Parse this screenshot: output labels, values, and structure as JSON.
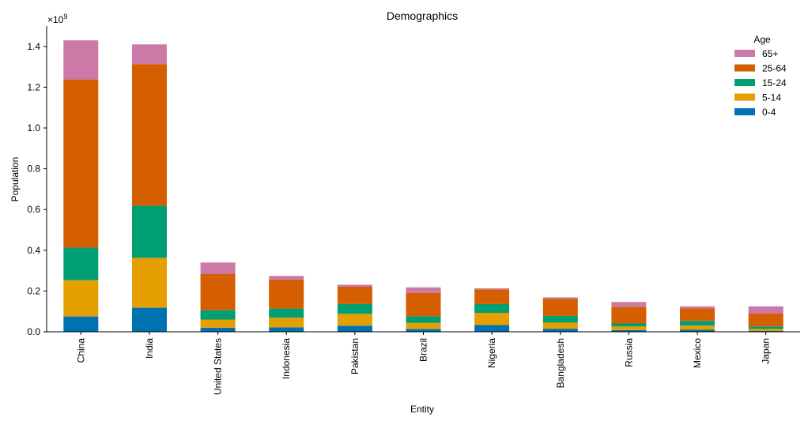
{
  "chart_data": {
    "type": "bar",
    "stacked": true,
    "title": "Demographics",
    "xlabel": "Entity",
    "ylabel": "Population",
    "y_multiplier": "×10",
    "y_multiplier_exp": "9",
    "ylim": [
      0,
      1.5
    ],
    "yticks": [
      0.0,
      0.2,
      0.4,
      0.6,
      0.8,
      1.0,
      1.2,
      1.4
    ],
    "ytick_labels": [
      "0.0",
      "0.2",
      "0.4",
      "0.6",
      "0.8",
      "1.0",
      "1.2",
      "1.4"
    ],
    "categories": [
      "China",
      "India",
      "United States",
      "Indonesia",
      "Pakistan",
      "Brazil",
      "Nigeria",
      "Bangladesh",
      "Russia",
      "Mexico",
      "Japan"
    ],
    "series": [
      {
        "name": "0-4",
        "color": "#0072B2",
        "values": [
          0.075,
          0.118,
          0.02,
          0.022,
          0.03,
          0.014,
          0.033,
          0.015,
          0.008,
          0.01,
          0.004
        ]
      },
      {
        "name": "5-14",
        "color": "#E69F00",
        "values": [
          0.178,
          0.245,
          0.04,
          0.047,
          0.058,
          0.03,
          0.06,
          0.03,
          0.018,
          0.02,
          0.01
        ]
      },
      {
        "name": "15-24",
        "color": "#009E73",
        "values": [
          0.16,
          0.255,
          0.046,
          0.045,
          0.048,
          0.032,
          0.043,
          0.033,
          0.015,
          0.023,
          0.012
        ]
      },
      {
        "name": "25-64",
        "color": "#D55E00",
        "values": [
          0.825,
          0.695,
          0.177,
          0.142,
          0.085,
          0.115,
          0.072,
          0.083,
          0.082,
          0.062,
          0.063
        ]
      },
      {
        "name": "65+",
        "color": "#CC79A7",
        "values": [
          0.192,
          0.097,
          0.057,
          0.018,
          0.01,
          0.027,
          0.005,
          0.008,
          0.023,
          0.01,
          0.036
        ]
      }
    ],
    "legend": {
      "title": "Age",
      "placement": "top-right",
      "order": [
        "65+",
        "25-64",
        "15-24",
        "5-14",
        "0-4"
      ]
    },
    "grid": false
  }
}
